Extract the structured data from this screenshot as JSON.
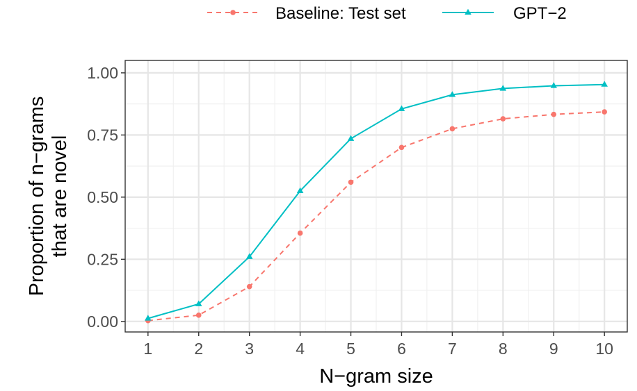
{
  "chart_data": {
    "type": "line",
    "title": "",
    "xlabel": "N−gram size",
    "ylabel_lines": [
      "Proportion of n−grams",
      "that are novel"
    ],
    "x": [
      1,
      2,
      3,
      4,
      5,
      6,
      7,
      8,
      9,
      10
    ],
    "x_tick_labels": [
      "1",
      "2",
      "3",
      "4",
      "5",
      "6",
      "7",
      "8",
      "9",
      "10"
    ],
    "y_tick_labels": [
      "0.00",
      "0.25",
      "0.50",
      "0.75",
      "1.00"
    ],
    "y_ticks": [
      0,
      0.25,
      0.5,
      0.75,
      1.0
    ],
    "xlim": [
      0.55,
      10.45
    ],
    "ylim": [
      -0.0425,
      1.05
    ],
    "grid": true,
    "legend_position": "top",
    "series": [
      {
        "name": "Baseline: Test set",
        "color": "#F8766D",
        "linestyle": "dashed",
        "marker": "circle",
        "values": [
          0.003,
          0.025,
          0.14,
          0.355,
          0.56,
          0.7,
          0.775,
          0.815,
          0.833,
          0.843
        ]
      },
      {
        "name": "GPT−2",
        "color": "#00BFC4",
        "linestyle": "solid",
        "marker": "triangle",
        "values": [
          0.012,
          0.07,
          0.26,
          0.525,
          0.735,
          0.855,
          0.912,
          0.937,
          0.948,
          0.953
        ]
      }
    ]
  }
}
